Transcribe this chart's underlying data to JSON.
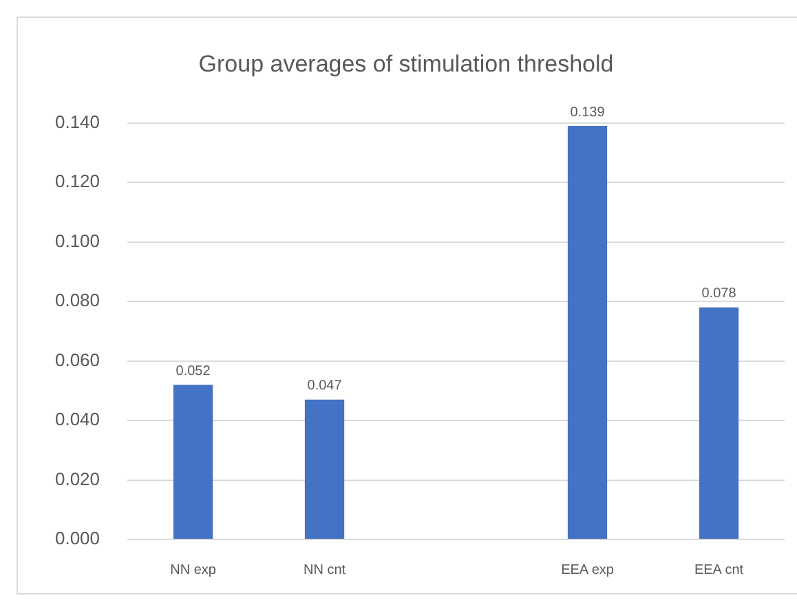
{
  "chart_data": {
    "type": "bar",
    "title": "Group averages of stimulation threshold",
    "categories": [
      "NN exp",
      "NN cnt",
      null,
      "EEA exp",
      "EEA cnt"
    ],
    "values": [
      0.052,
      0.047,
      null,
      0.139,
      0.078
    ],
    "color": "#4472c4",
    "ylim": [
      0,
      0.14
    ],
    "yticks": [
      {
        "value": 0,
        "label": "0.000"
      },
      {
        "value": 0.02,
        "label": "0.020"
      },
      {
        "value": 0.04,
        "label": "0.040"
      },
      {
        "value": 0.06,
        "label": "0.060"
      },
      {
        "value": 0.08,
        "label": "0.080"
      },
      {
        "value": 0.1,
        "label": "0.100"
      },
      {
        "value": 0.12,
        "label": "0.120"
      },
      {
        "value": 0.14,
        "label": "0.140"
      }
    ],
    "grid": "y",
    "legend": false,
    "data_labels": true
  }
}
